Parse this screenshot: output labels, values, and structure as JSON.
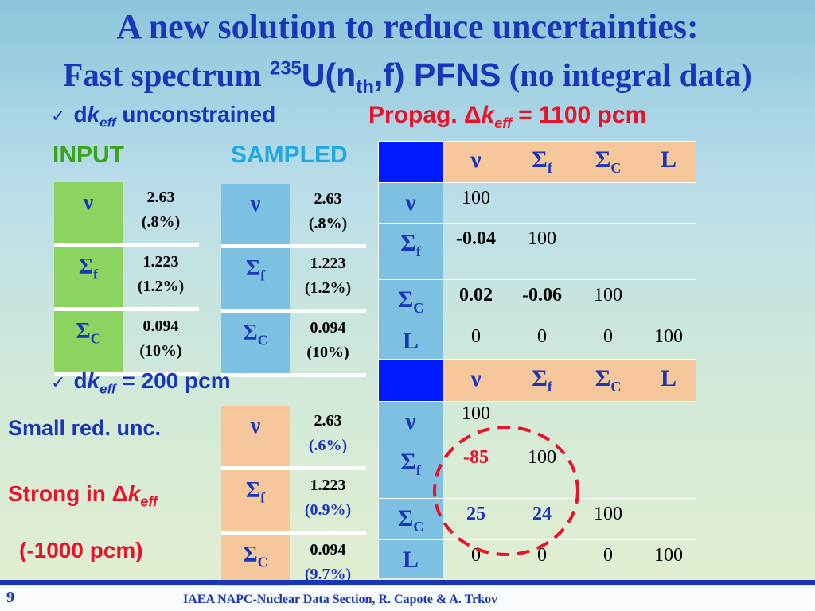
{
  "title": {
    "line1": "A new solution to reduce uncertainties:",
    "line2_a": "Fast spectrum ",
    "line2_mass": "235",
    "line2_b": "U(n",
    "line2_sub": "th",
    "line2_c": ",f) PFNS",
    "line2_d": " (no integral data)"
  },
  "bullet1": {
    "check": "✓",
    "d": "d",
    "k": "k",
    "sub": "eff",
    "text": " unconstrained"
  },
  "propag": {
    "prefix": "Propag. ",
    "delta": "Δ",
    "k": "k",
    "sub": "eff",
    "suffix": " =  1100 pcm"
  },
  "labels": {
    "input": "INPUT",
    "sampled": "SAMPLED"
  },
  "bullet2": {
    "check": "✓",
    "d": "d",
    "k": "k",
    "sub": "eff",
    "text": " = 200 pcm"
  },
  "notes": {
    "small": "Small red. unc.",
    "strong_prefix": "Strong in ",
    "strong_delta": "Δ",
    "strong_k": "k",
    "strong_sub": "eff",
    "reduction": "(-1000 pcm)"
  },
  "symbols": {
    "nu": "ν",
    "sigma": "Σ",
    "f": "f",
    "c": "C",
    "L": "L"
  },
  "input_table": [
    {
      "value": "2.63",
      "pct": "(.8%)"
    },
    {
      "value": "1.223",
      "pct": "(1.2%)"
    },
    {
      "value": "0.094",
      "pct": "(10%)"
    }
  ],
  "sampled_table": [
    {
      "value": "2.63",
      "pct": "(.8%)"
    },
    {
      "value": "1.223",
      "pct": "(1.2%)"
    },
    {
      "value": "0.094",
      "pct": "(10%)"
    }
  ],
  "constrained_table": [
    {
      "value": "2.63",
      "pct": "(.6%)"
    },
    {
      "value": "1.223",
      "pct": "(0.9%)"
    },
    {
      "value": "0.094",
      "pct": "(9.7%)"
    }
  ],
  "matrix1": [
    [
      "100",
      "",
      "",
      ""
    ],
    [
      "-0.04",
      "100",
      "",
      ""
    ],
    [
      "0.02",
      "-0.06",
      "100",
      ""
    ],
    [
      "0",
      "0",
      "0",
      "100"
    ]
  ],
  "matrix2": [
    [
      "100",
      "",
      "",
      ""
    ],
    [
      "-85",
      "100",
      "",
      ""
    ],
    [
      "25",
      "24",
      "100",
      ""
    ],
    [
      "0",
      "0",
      "0",
      "100"
    ]
  ],
  "colors": {
    "title_blue": "#1a36b8",
    "red": "#e8132a",
    "green": "#3aa41c",
    "cyan": "#22a7e0",
    "corner": "#0019ff"
  },
  "footer": {
    "page": "9",
    "text": "IAEA NAPC-Nuclear Data Section, R. Capote & A. Trkov"
  }
}
